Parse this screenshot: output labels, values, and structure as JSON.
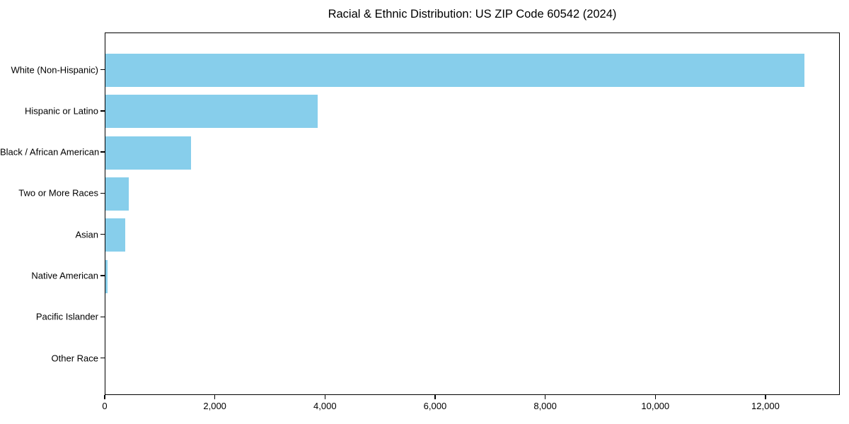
{
  "chart_data": {
    "type": "bar",
    "orientation": "horizontal",
    "title": "Racial & Ethnic Distribution: US ZIP Code 60542 (2024)",
    "categories": [
      "White (Non-Hispanic)",
      "Hispanic or Latino",
      "Black / African American",
      "Two or More Races",
      "Asian",
      "Native American",
      "Pacific Islander",
      "Other Race"
    ],
    "values": [
      12700,
      3850,
      1560,
      420,
      360,
      35,
      0,
      0
    ],
    "xlabel": "",
    "ylabel": "",
    "xlim": [
      0,
      13350
    ],
    "xticks": [
      0,
      2000,
      4000,
      6000,
      8000,
      10000,
      12000
    ],
    "xtick_labels": [
      "0",
      "2,000",
      "4,000",
      "6,000",
      "8,000",
      "10,000",
      "12,000"
    ],
    "bar_color": "#87CEEB",
    "axis_color": "#000000",
    "text_color": "#000000",
    "background": "#FFFFFF",
    "grid": false,
    "legend": false
  }
}
